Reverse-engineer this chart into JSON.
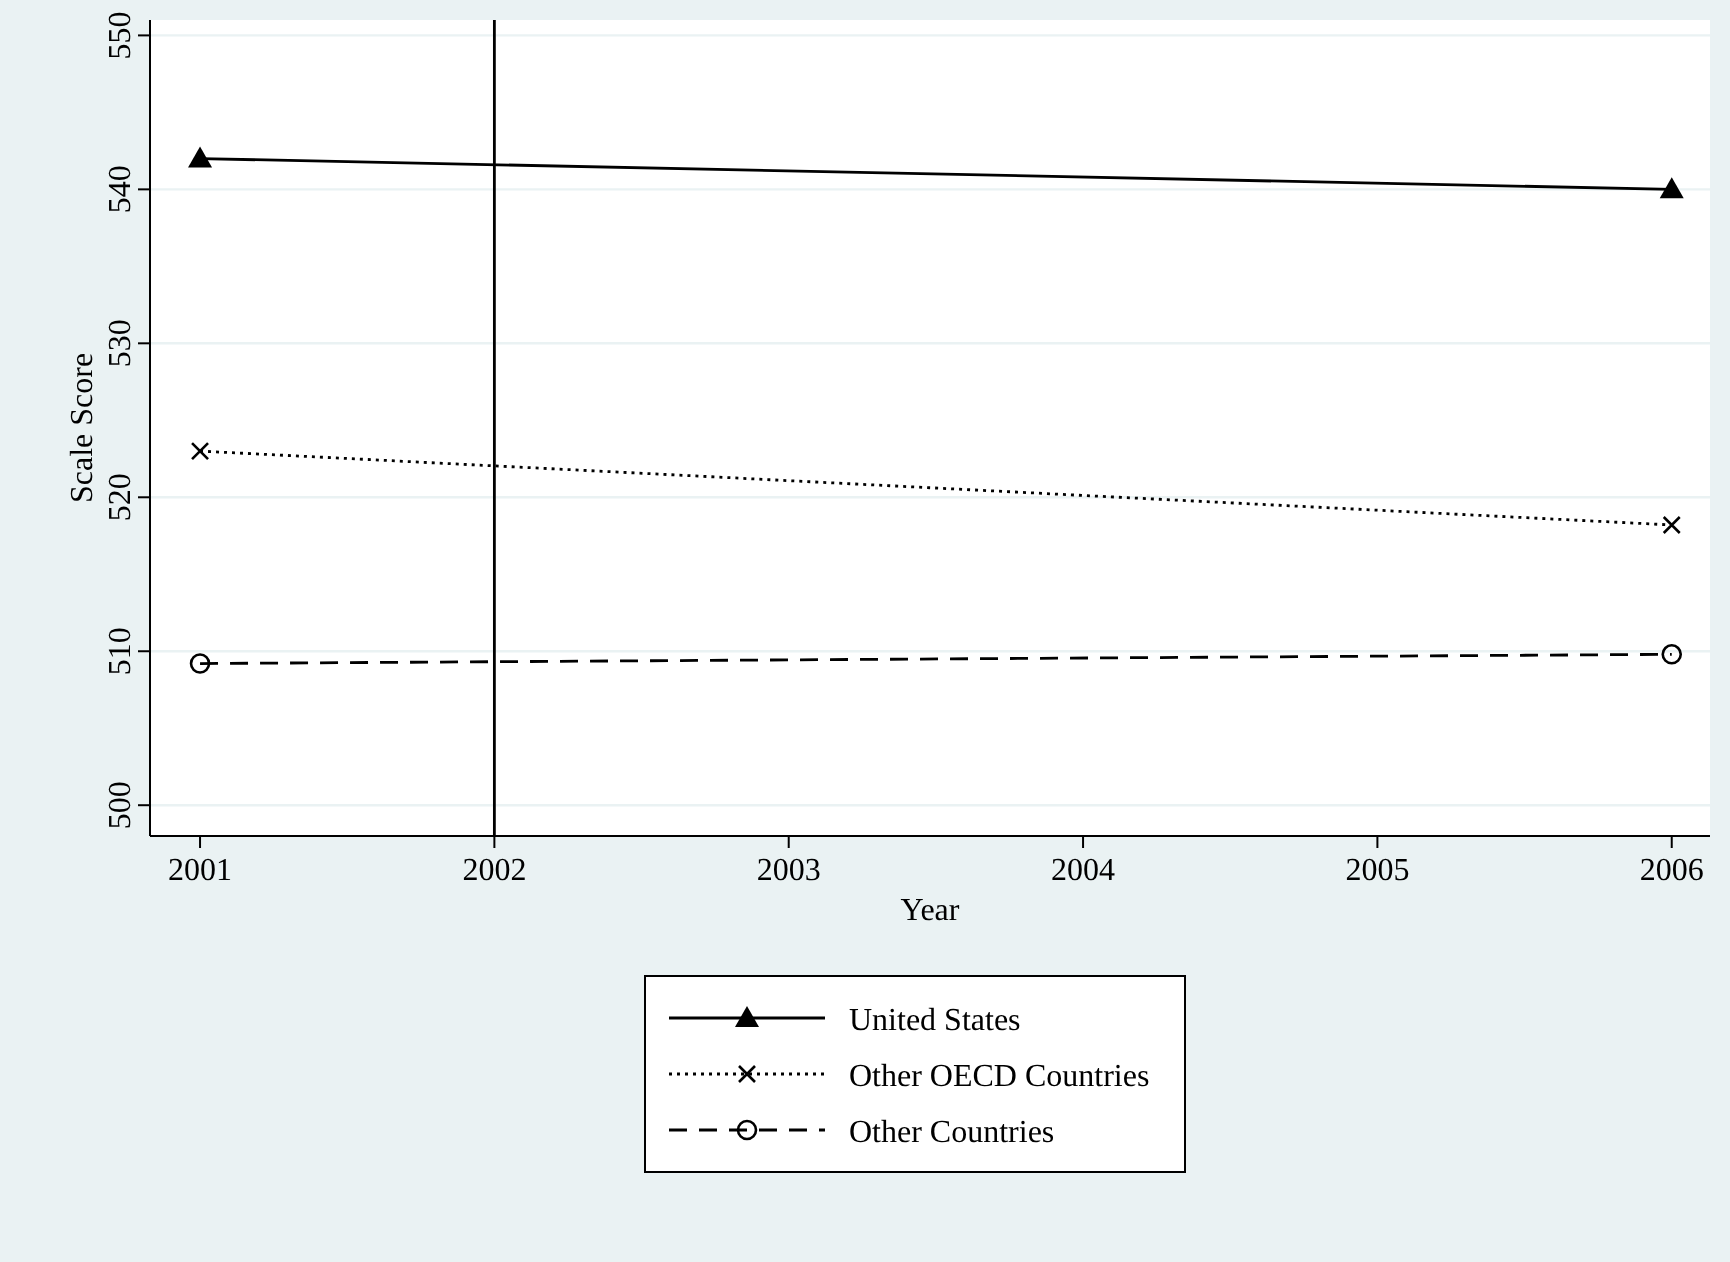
{
  "chart_data": {
    "type": "line",
    "xlabel": "Year",
    "ylabel": "Scale Score",
    "x": [
      2001,
      2006
    ],
    "series": [
      {
        "name": "United States",
        "color": "#000000",
        "values": [
          542,
          540
        ],
        "marker": "triangle",
        "line_style": "solid"
      },
      {
        "name": "Other OECD Countries",
        "color": "#000000",
        "values": [
          523,
          518.2
        ],
        "marker": "cross",
        "line_style": "dotted"
      },
      {
        "name": "Other Countries",
        "color": "#000000",
        "values": [
          509.2,
          509.8
        ],
        "marker": "circle",
        "line_style": "dashed"
      }
    ],
    "xlim": [
      2000.83,
      2006.13
    ],
    "xticks": [
      2001,
      2002,
      2003,
      2004,
      2005,
      2006
    ],
    "ylim": [
      498,
      551
    ],
    "yticks": [
      500,
      510,
      520,
      530,
      540,
      550
    ],
    "grid": "y",
    "legend": "bottom",
    "ref_lines": [
      {
        "axis": "x",
        "value": 2002,
        "color": "#000000"
      }
    ]
  }
}
